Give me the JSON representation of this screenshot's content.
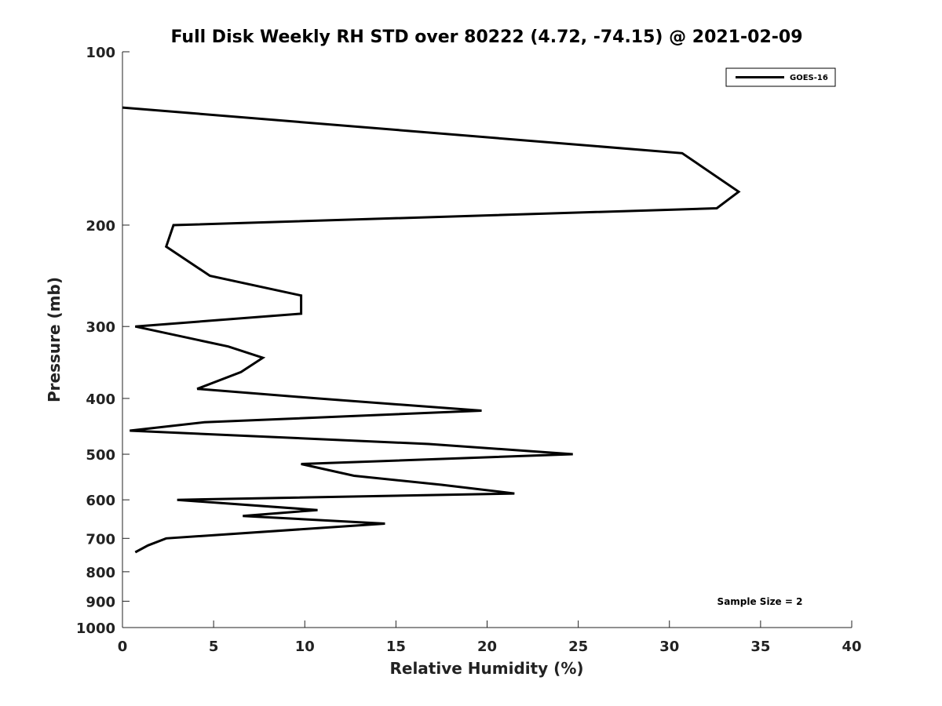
{
  "chart_data": {
    "type": "line",
    "title": "Full Disk Weekly RH STD over 80222 (4.72, -74.15) @ 2021-02-09",
    "xlabel": "Relative Humidity (%)",
    "ylabel": "Pressure (mb)",
    "xlim": [
      0,
      40
    ],
    "ylim": [
      100,
      1000
    ],
    "yscale": "log",
    "y_reversed": true,
    "xticks": [
      0,
      5,
      10,
      15,
      20,
      25,
      30,
      35,
      40
    ],
    "xtick_labels": [
      "0",
      "5",
      "10",
      "15",
      "20",
      "25",
      "30",
      "35",
      "40"
    ],
    "yticks": [
      100,
      200,
      300,
      400,
      500,
      600,
      700,
      800,
      900,
      1000
    ],
    "ytick_labels": [
      "100",
      "200",
      "300",
      "400",
      "500",
      "600",
      "700",
      "800",
      "900",
      "1000"
    ],
    "grid": false,
    "legend_position": "top-right",
    "series": [
      {
        "name": "GOES-16",
        "color": "#000000",
        "x": [
          0.0,
          30.7,
          33.8,
          32.6,
          2.8,
          2.4,
          4.8,
          9.8,
          9.8,
          0.7,
          5.8,
          7.7,
          6.5,
          4.1,
          10.7,
          19.7,
          4.5,
          0.4,
          16.8,
          24.7,
          9.8,
          12.7,
          17.5,
          21.5,
          3.0,
          10.7,
          6.6,
          14.4,
          2.4,
          1.4,
          0.7
        ],
        "y": [
          125,
          150,
          175,
          187,
          200,
          218,
          245,
          265,
          285,
          300,
          325,
          340,
          360,
          385,
          400,
          420,
          440,
          455,
          480,
          500,
          520,
          545,
          565,
          585,
          600,
          625,
          640,
          660,
          700,
          720,
          740
        ]
      }
    ],
    "annotations": [
      "Sample Size = 2"
    ]
  }
}
